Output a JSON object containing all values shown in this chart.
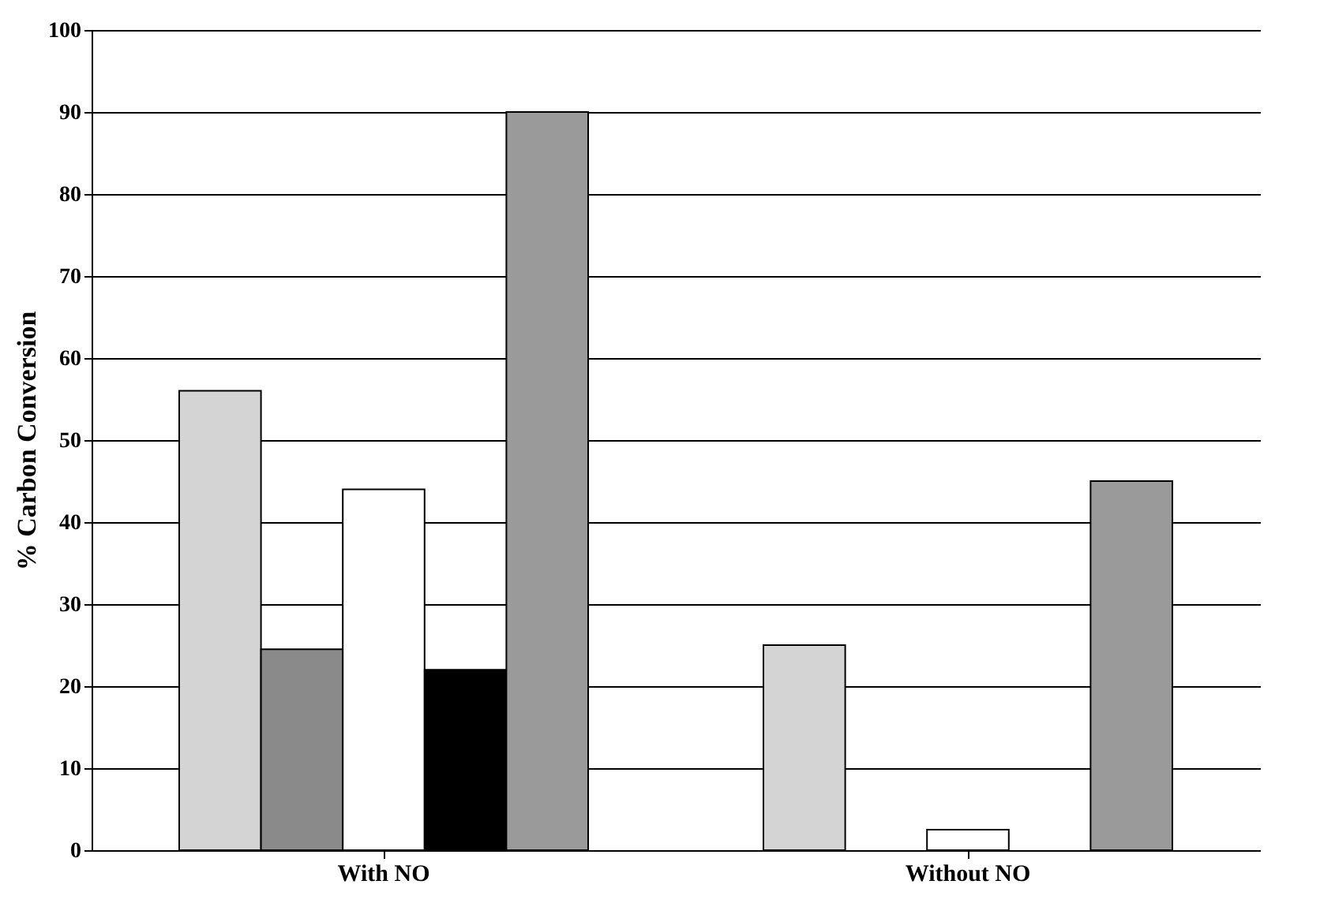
{
  "chart_data": {
    "type": "bar",
    "ylabel": "% Carbon Conversion",
    "categories": [
      "With NO",
      "Without NO"
    ],
    "series": [
      {
        "color": "#d4d4d4",
        "values": [
          56,
          25
        ]
      },
      {
        "color": "#8a8a8a",
        "values": [
          24.5,
          null
        ]
      },
      {
        "color": "#ffffff",
        "values": [
          44,
          2.5
        ]
      },
      {
        "color": "#000000",
        "values": [
          22,
          null
        ]
      },
      {
        "color": "#9a9a9a",
        "values": [
          90,
          45
        ]
      }
    ],
    "ylim": [
      0,
      100
    ],
    "yticks": [
      0,
      10,
      20,
      30,
      40,
      50,
      60,
      70,
      80,
      90,
      100
    ],
    "grid": "y",
    "legend": false
  }
}
